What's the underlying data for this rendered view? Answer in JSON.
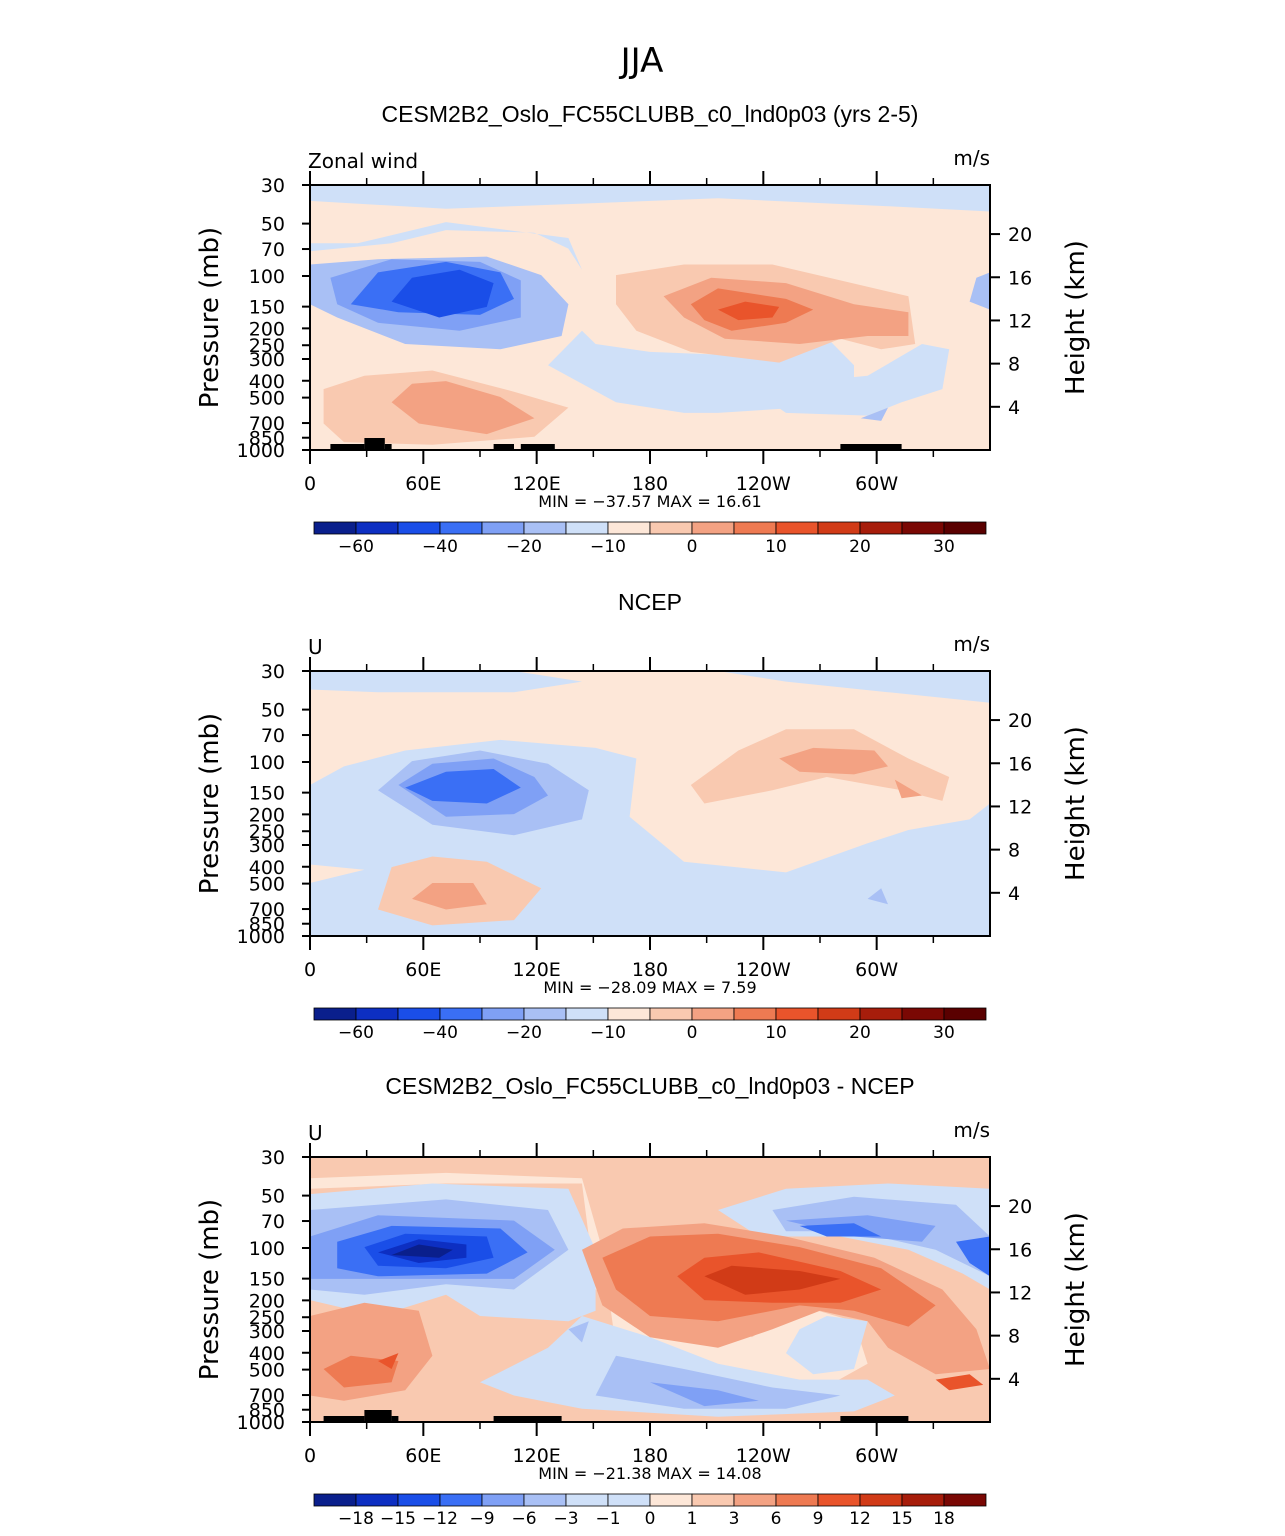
{
  "page_title": "JJA",
  "colors": {
    "min60": "#0a1f8c",
    "min50": "#0d2fc2",
    "min40": "#1a4ee8",
    "min30": "#3a6ff5",
    "min20": "#7fa0f5",
    "min15": "#a9c0f5",
    "min10": "#cfe0f8",
    "zero": "#fde7d8",
    "p5": "#f9c9b0",
    "p10": "#f3a283",
    "p15": "#ee7a52",
    "p20": "#e9542b",
    "p25": "#d13b17",
    "p30": "#a71d0b",
    "p35": "#7a0804",
    "terrain": "#000000"
  },
  "panels": [
    {
      "id": "model",
      "title": "CESM2B2_Oslo_FC55CLUBB_c0_lnd0p03 (yrs 2-5)",
      "left_label": "Zonal wind",
      "right_label": "m/s",
      "min_max": "MIN = −37.57   MAX =   16.61",
      "colorbar_labels": [
        "−60",
        "−40",
        "−20",
        "−10",
        "0",
        "10",
        "20",
        "30"
      ]
    },
    {
      "id": "obs",
      "title": "NCEP",
      "left_label": "U",
      "right_label": "m/s",
      "min_max": "MIN = −28.09   MAX =    7.59",
      "colorbar_labels": [
        "−60",
        "−40",
        "−20",
        "−10",
        "0",
        "10",
        "20",
        "30"
      ]
    },
    {
      "id": "diff",
      "title": "CESM2B2_Oslo_FC55CLUBB_c0_lnd0p03 - NCEP",
      "left_label": "U",
      "right_label": "m/s",
      "min_max": "MIN = −21.38   MAX =   14.08",
      "colorbar_labels": [
        "−18",
        "−15",
        "−12",
        "−9",
        "−6",
        "−3",
        "−1",
        "0",
        "1",
        "3",
        "6",
        "9",
        "12",
        "15",
        "18"
      ]
    }
  ],
  "chart_data": [
    {
      "type": "heatmap",
      "title": "CESM2B2_Oslo_FC55CLUBB_c0_lnd0p03 (yrs 2-5)",
      "variable": "Zonal wind",
      "units": "m/s",
      "xlabel": "",
      "ylabel": "Pressure (mb)",
      "y2label": "Height (km)",
      "x_ticks": [
        "0",
        "60E",
        "120E",
        "180",
        "120W",
        "60W"
      ],
      "y_ticks": [
        "30",
        "50",
        "70",
        "100",
        "150",
        "200",
        "250",
        "300",
        "400",
        "500",
        "700",
        "850",
        "1000"
      ],
      "y2_ticks": [
        "20",
        "16",
        "12",
        "8",
        "4"
      ],
      "min": -37.57,
      "max": 16.61,
      "levels": [
        -60,
        -50,
        -40,
        -30,
        -20,
        -15,
        -10,
        -5,
        0,
        5,
        10,
        15,
        20,
        25,
        30,
        35
      ]
    },
    {
      "type": "heatmap",
      "title": "NCEP",
      "variable": "U",
      "units": "m/s",
      "xlabel": "",
      "ylabel": "Pressure (mb)",
      "y2label": "Height (km)",
      "x_ticks": [
        "0",
        "60E",
        "120E",
        "180",
        "120W",
        "60W"
      ],
      "y_ticks": [
        "30",
        "50",
        "70",
        "100",
        "150",
        "200",
        "250",
        "300",
        "400",
        "500",
        "700",
        "850",
        "1000"
      ],
      "y2_ticks": [
        "20",
        "16",
        "12",
        "8",
        "4"
      ],
      "min": -28.09,
      "max": 7.59,
      "levels": [
        -60,
        -50,
        -40,
        -30,
        -20,
        -15,
        -10,
        -5,
        0,
        5,
        10,
        15,
        20,
        25,
        30,
        35
      ]
    },
    {
      "type": "heatmap",
      "title": "CESM2B2_Oslo_FC55CLUBB_c0_lnd0p03 - NCEP",
      "variable": "U",
      "units": "m/s",
      "xlabel": "",
      "ylabel": "Pressure (mb)",
      "y2label": "Height (km)",
      "x_ticks": [
        "0",
        "60E",
        "120E",
        "180",
        "120W",
        "60W"
      ],
      "y_ticks": [
        "30",
        "50",
        "70",
        "100",
        "150",
        "200",
        "250",
        "300",
        "400",
        "500",
        "700",
        "850",
        "1000"
      ],
      "y2_ticks": [
        "20",
        "16",
        "12",
        "8",
        "4"
      ],
      "min": -21.38,
      "max": 14.08,
      "levels": [
        -18,
        -15,
        -12,
        -9,
        -6,
        -3,
        -1,
        0,
        1,
        3,
        6,
        9,
        12,
        15,
        18
      ]
    }
  ]
}
